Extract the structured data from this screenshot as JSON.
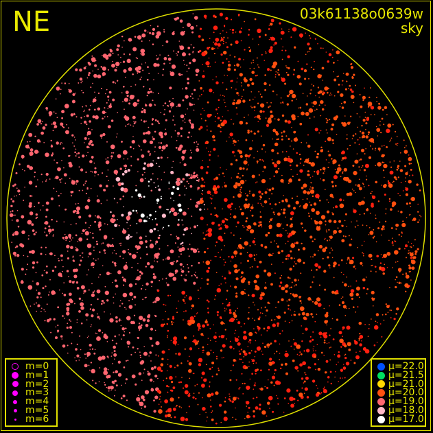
{
  "header": {
    "direction": "NE",
    "image_id": "03k61138o0639w",
    "kind": "sky"
  },
  "colors": {
    "frame": "#e0e000",
    "background": "#000000"
  },
  "chart_data": {
    "type": "scatter",
    "title": "",
    "grid": false,
    "magnitude_legend": {
      "placement": "bottom-left",
      "color": "#ff00ff",
      "entries": [
        "m=0",
        "m=1",
        "m=2",
        "m=3",
        "m=4",
        "m=5",
        "m=6"
      ]
    },
    "surface_brightness_legend": {
      "placement": "bottom-right",
      "entries": [
        {
          "label": "μ=22.0",
          "color": "#0050ff"
        },
        {
          "label": "μ=21.5",
          "color": "#00e060"
        },
        {
          "label": "μ=21.0",
          "color": "#ffd800"
        },
        {
          "label": "μ=20.0",
          "color": "#ff5010"
        },
        {
          "label": "μ=19.0",
          "color": "#ff6670"
        },
        {
          "label": "μ=18.0",
          "color": "#ffb8c8"
        },
        {
          "label": "μ=17.0",
          "color": "#ffffff"
        }
      ]
    }
  }
}
